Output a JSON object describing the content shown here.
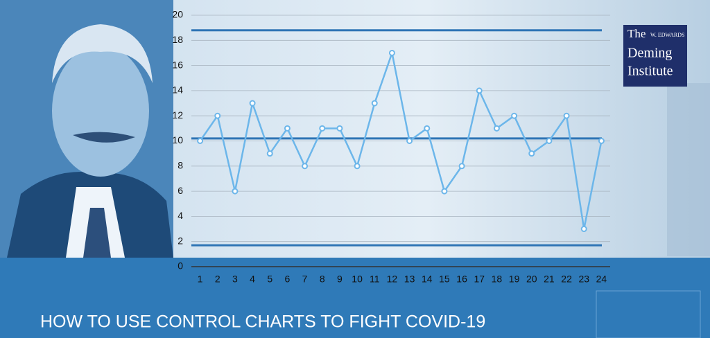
{
  "chart_data": {
    "type": "line",
    "title": "HOW TO USE CONTROL CHARTS TO FIGHT COVID-19",
    "x": [
      1,
      2,
      3,
      4,
      5,
      6,
      7,
      8,
      9,
      10,
      11,
      12,
      13,
      14,
      15,
      16,
      17,
      18,
      19,
      20,
      21,
      22,
      23,
      24
    ],
    "series": [
      {
        "color": "#6cb6ea",
        "values": [
          10,
          12,
          6,
          13,
          9,
          11,
          8,
          11,
          11,
          8,
          13,
          17,
          10,
          11,
          6,
          8,
          14,
          11,
          12,
          9,
          10,
          12,
          3,
          10
        ]
      }
    ],
    "control_limits": {
      "upper": 18.8,
      "center": 10.2,
      "lower": 1.7,
      "color": "#2e74b5"
    },
    "xlim": [
      0.5,
      24.5
    ],
    "xticks": [
      1,
      2,
      3,
      4,
      5,
      6,
      7,
      8,
      9,
      10,
      11,
      12,
      13,
      14,
      15,
      16,
      17,
      18,
      19,
      20,
      21,
      22,
      23,
      24
    ],
    "ylim": [
      0,
      20
    ],
    "yticks": [
      0,
      2,
      4,
      6,
      8,
      10,
      12,
      14,
      16,
      18,
      20
    ],
    "grid": true
  },
  "logo": {
    "line1": "The",
    "small": "W. EDWARDS",
    "line2": "Deming",
    "line3": "Institute"
  }
}
